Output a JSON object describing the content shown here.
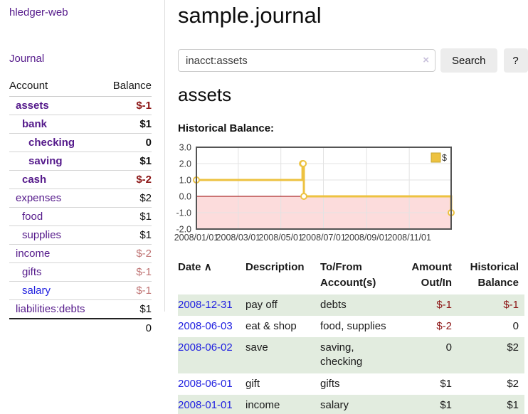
{
  "sidebar": {
    "brand": "hledger-web",
    "nav": {
      "journal_label": "Journal"
    },
    "accounts_table": {
      "headers": {
        "account": "Account",
        "balance": "Balance"
      },
      "rows": [
        {
          "account": "assets",
          "balance": "$-1",
          "depth": 1,
          "bold": true,
          "negative": true
        },
        {
          "account": "bank",
          "balance": "$1",
          "depth": 2,
          "bold": true,
          "negative": false
        },
        {
          "account": "checking",
          "balance": "0",
          "depth": 3,
          "bold": true,
          "negative": false
        },
        {
          "account": "saving",
          "balance": "$1",
          "depth": 3,
          "bold": true,
          "negative": false
        },
        {
          "account": "cash",
          "balance": "$-2",
          "depth": 2,
          "bold": true,
          "negative": true
        },
        {
          "account": "expenses",
          "balance": "$2",
          "depth": 1,
          "bold": false,
          "negative": false
        },
        {
          "account": "food",
          "balance": "$1",
          "depth": 2,
          "bold": false,
          "negative": false
        },
        {
          "account": "supplies",
          "balance": "$1",
          "depth": 2,
          "bold": false,
          "negative": false
        },
        {
          "account": "income",
          "balance": "$-2",
          "depth": 1,
          "bold": false,
          "negative": true
        },
        {
          "account": "gifts",
          "balance": "$-1",
          "depth": 2,
          "bold": false,
          "negative": true
        },
        {
          "account": "salary",
          "balance": "$-1",
          "depth": 2,
          "bold": false,
          "negative": true,
          "blue": true
        },
        {
          "account": "liabilities:debts",
          "balance": "$1",
          "depth": 1,
          "bold": false,
          "negative": false
        }
      ],
      "total": "0"
    }
  },
  "main": {
    "title": "sample.journal",
    "search": {
      "value": "inacct:assets",
      "clear_icon": "×",
      "button_label": "Search",
      "help_label": "?"
    },
    "account_heading": "assets",
    "chart_label": "Historical Balance:"
  },
  "chart_data": {
    "type": "line",
    "style": "steps",
    "title": "Historical Balance",
    "series": [
      {
        "name": "$",
        "color": "#edc240",
        "points": [
          [
            "2008-01-01",
            1
          ],
          [
            "2008-06-01",
            2
          ],
          [
            "2008-06-02",
            2
          ],
          [
            "2008-06-03",
            0
          ],
          [
            "2008-12-31",
            -1
          ]
        ]
      }
    ],
    "x_range": [
      "2008-01-01",
      "2008-12-31"
    ],
    "x_ticks": [
      "2008/01/01",
      "2008/03/01",
      "2008/05/01",
      "2008/07/01",
      "2008/09/01",
      "2008/11/01"
    ],
    "y_ticks": [
      3.0,
      2.0,
      1.0,
      0.0,
      -1.0,
      -2.0
    ],
    "ylim": [
      -2,
      3
    ],
    "legend": {
      "label": "$",
      "position": "top-right"
    },
    "grid": true,
    "negative_region_color": "#fcdcdc",
    "zero_line_color": "#990000",
    "border_color": "#545454"
  },
  "register_table": {
    "sort_indicator": "∧",
    "headers": [
      {
        "line1": "Date",
        "line2": ""
      },
      {
        "line1": "Description",
        "line2": ""
      },
      {
        "line1": "To/From",
        "line2": "Account(s)"
      },
      {
        "line1": "Amount",
        "line2": "Out/In"
      },
      {
        "line1": "Historical",
        "line2": "Balance"
      }
    ],
    "rows": [
      {
        "date": "2008-12-31",
        "description": "pay off",
        "accounts": "debts",
        "amount": "$-1",
        "balance": "$-1",
        "amount_negative": true,
        "balance_negative": true
      },
      {
        "date": "2008-06-03",
        "description": "eat & shop",
        "accounts": "food, supplies",
        "amount": "$-2",
        "balance": "0",
        "amount_negative": true,
        "balance_negative": false
      },
      {
        "date": "2008-06-02",
        "description": "save",
        "accounts": "saving, checking",
        "amount": "0",
        "balance": "$2",
        "amount_negative": false,
        "balance_negative": false
      },
      {
        "date": "2008-06-01",
        "description": "gift",
        "accounts": "gifts",
        "amount": "$1",
        "balance": "$2",
        "amount_negative": false,
        "balance_negative": false
      },
      {
        "date": "2008-01-01",
        "description": "income",
        "accounts": "salary",
        "amount": "$1",
        "balance": "$1",
        "amount_negative": false,
        "balance_negative": false
      }
    ]
  }
}
